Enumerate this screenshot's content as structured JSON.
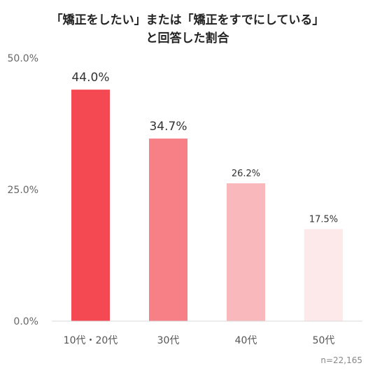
{
  "chart_data": {
    "type": "bar",
    "title": [
      "「矯正をしたい」または「矯正をすでにしている」",
      "と回答した割合"
    ],
    "categories": [
      "10代・20代",
      "30代",
      "40代",
      "50代"
    ],
    "values": [
      44.0,
      34.7,
      26.2,
      17.5
    ],
    "value_labels": [
      "44.0%",
      "34.7%",
      "26.2%",
      "17.5%"
    ],
    "bar_colors": [
      "#f44853",
      "#f78086",
      "#f9b9bc",
      "#fde9ea"
    ],
    "ylim": [
      0,
      50
    ],
    "yticks": [
      0,
      25,
      50
    ],
    "ytick_labels": [
      "0.0%",
      "25.0%",
      "50.0%"
    ],
    "grid": false,
    "xlabel": "",
    "ylabel": "",
    "note": "n=22,165"
  }
}
